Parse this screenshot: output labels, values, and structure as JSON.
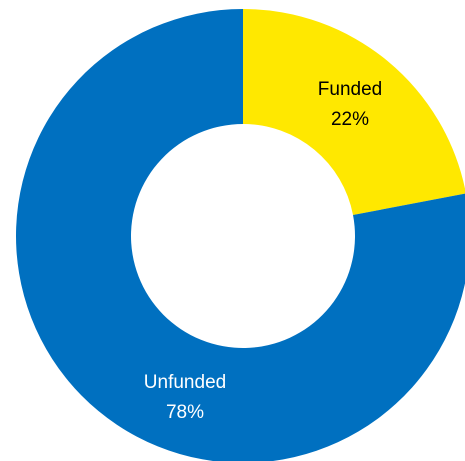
{
  "chart_data": {
    "type": "donut",
    "categories": [
      "Funded",
      "Unfunded"
    ],
    "values": [
      22,
      78
    ],
    "value_labels": [
      "22%",
      "78%"
    ],
    "colors": [
      "#ffe800",
      "#0070c0"
    ],
    "label_colors": [
      "#000000",
      "#ffffff"
    ]
  }
}
